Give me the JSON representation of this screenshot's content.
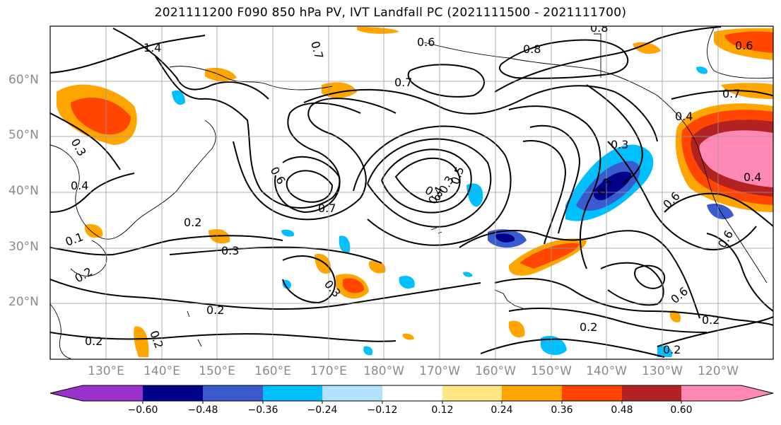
{
  "title": "2021111200 F090 850 hPa PV, IVT Landfall PC (2021111500 - 2021111700)",
  "lat_labels": [
    "60°N",
    "50°N",
    "40°N",
    "30°N",
    "20°N"
  ],
  "lon_labels": [
    "130°E",
    "140°E",
    "150°E",
    "160°E",
    "170°E",
    "180°W",
    "170°W",
    "160°W",
    "150°W",
    "140°W",
    "130°W",
    "120°W"
  ],
  "colorbar": {
    "ticks": [
      "−0.60",
      "−0.48",
      "−0.36",
      "−0.24",
      "−0.12",
      "0.12",
      "0.24",
      "0.36",
      "0.48",
      "0.60"
    ],
    "colors": [
      "#9932cc",
      "#00008b",
      "#3a5bcf",
      "#00bfff",
      "#b0e2ff",
      "#ffffff",
      "#ffe680",
      "#ffa500",
      "#ff4500",
      "#b22222",
      "#ff88b4"
    ]
  },
  "contour_labels": [
    "1.4",
    "0.7",
    "0.6",
    "0.8",
    "0.7",
    "0.8",
    "0.7",
    "0.4",
    "0.3",
    "0.3",
    "0.4",
    "0.2",
    "0.3",
    "0.6",
    "0.7",
    "0.2",
    "0.3",
    "0.4",
    "0.3",
    "0.8",
    "0.5",
    "0.6",
    "0.6",
    "0.2",
    "0.2",
    "0.3",
    "0.2",
    "0.2",
    "0.2",
    "0.2",
    "0.6",
    "0.1",
    "0.4",
    "0.6"
  ]
}
